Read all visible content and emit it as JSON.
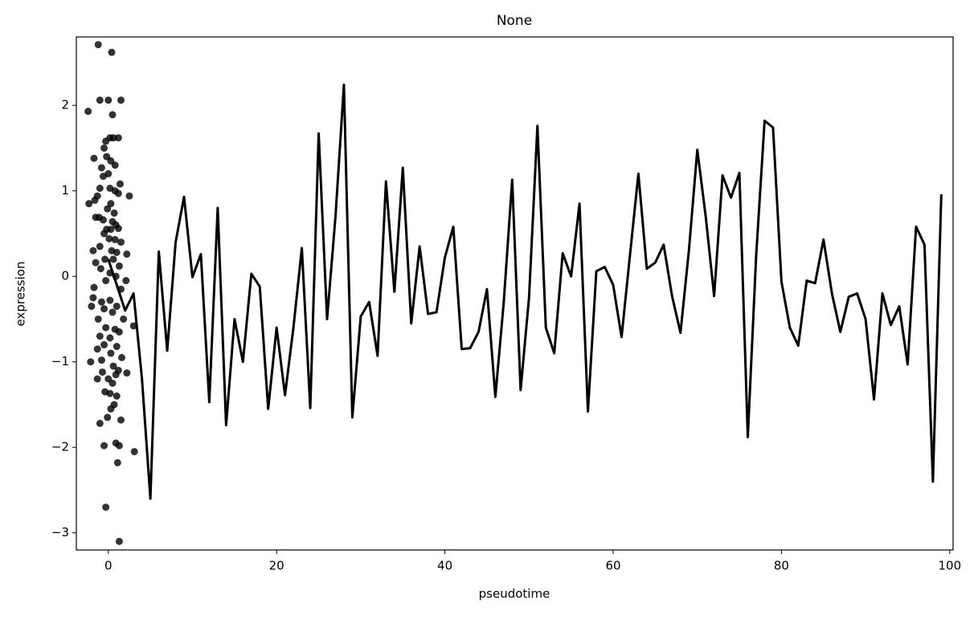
{
  "chart_data": {
    "type": "line",
    "title": "None",
    "xlabel": "pseudotime",
    "ylabel": "expression",
    "xlim": [
      -3.8,
      100.4
    ],
    "ylim": [
      -3.2,
      2.8
    ],
    "xticks": [
      0,
      20,
      40,
      60,
      80,
      100
    ],
    "yticks": [
      {
        "value": -3,
        "label": "−3"
      },
      {
        "value": -2,
        "label": "−2"
      },
      {
        "value": -1,
        "label": "−1"
      },
      0,
      1,
      2
    ],
    "series": [
      {
        "type": "scatter",
        "color": "#000000",
        "x": [
          -2.4,
          -1.2,
          0.4,
          -1,
          0,
          1.5,
          0.5,
          -0.3,
          0.2,
          0.6,
          1.2,
          -0.5,
          -1.7,
          -0.2,
          0.3,
          0.8,
          -0.8,
          -0.6,
          0,
          1.4,
          -1,
          0.2,
          0.8,
          1.2,
          2.5,
          -1.3,
          -1.6,
          -2.3,
          0.3,
          -0.1,
          0.7,
          -1.5,
          -1.1,
          -0.6,
          0.5,
          0.9,
          -0.2,
          0.3,
          1.2,
          -0.5,
          0.1,
          0.8,
          1.5,
          -1,
          -1.8,
          0.4,
          1,
          2.2,
          -1.5,
          -0.4,
          0.6,
          1.3,
          -0.9,
          0.2,
          0.9,
          -1.7,
          2.1,
          -0.3,
          1.5,
          -1.8,
          -0.8,
          0.2,
          1,
          -2,
          -0.5,
          0.5,
          1.8,
          -1.2,
          3,
          -0.3,
          0.8,
          1.3,
          -1,
          0.2,
          -0.5,
          1,
          -1.3,
          0.3,
          1.6,
          -0.8,
          -2.1,
          0.6,
          1.2,
          -0.7,
          2.2,
          0.9,
          -1.3,
          0,
          0.5,
          -0.4,
          0.2,
          1,
          0.7,
          0.3,
          -0.1,
          1.5,
          -1,
          -0.5,
          0.9,
          1.3,
          3.1,
          1.1,
          -0.3,
          1.3
        ],
        "values": [
          1.93,
          2.71,
          2.62,
          2.06,
          2.06,
          2.06,
          1.89,
          1.58,
          1.62,
          1.62,
          1.62,
          1.5,
          1.38,
          1.4,
          1.35,
          1.3,
          1.27,
          1.17,
          1.2,
          1.08,
          1.03,
          1.03,
          1,
          0.97,
          0.94,
          0.94,
          0.89,
          0.85,
          0.85,
          0.79,
          0.74,
          0.69,
          0.69,
          0.66,
          0.64,
          0.6,
          0.55,
          0.55,
          0.56,
          0.5,
          0.44,
          0.43,
          0.4,
          0.35,
          0.3,
          0.3,
          0.28,
          0.26,
          0.16,
          0.2,
          0.2,
          0.12,
          0.09,
          0.04,
          0,
          -0.13,
          -0.05,
          -0.05,
          -0.15,
          -0.25,
          -0.3,
          -0.28,
          -0.35,
          -0.35,
          -0.38,
          -0.42,
          -0.5,
          -0.5,
          -0.58,
          -0.6,
          -0.62,
          -0.65,
          -0.7,
          -0.72,
          -0.8,
          -0.82,
          -0.85,
          -0.9,
          -0.95,
          -0.98,
          -1,
          -1.05,
          -1.1,
          -1.12,
          -1.13,
          -1.15,
          -1.2,
          -1.2,
          -1.25,
          -1.35,
          -1.37,
          -1.4,
          -1.5,
          -1.55,
          -1.65,
          -1.68,
          -1.72,
          -1.98,
          -1.95,
          -1.98,
          -2.05,
          -2.18,
          -2.7,
          -3.1
        ]
      },
      {
        "type": "line",
        "color": "#000000",
        "x": [
          0,
          1,
          2,
          3,
          4,
          5,
          6,
          7,
          8,
          9,
          10,
          11,
          12,
          13,
          14,
          15,
          16,
          17,
          18,
          19,
          20,
          21,
          22,
          23,
          24,
          25,
          26,
          27,
          28,
          29,
          30,
          31,
          32,
          33,
          34,
          35,
          36,
          37,
          38,
          39,
          40,
          41,
          42,
          43,
          44,
          45,
          46,
          47,
          48,
          49,
          50,
          51,
          52,
          53,
          54,
          55,
          56,
          57,
          58,
          59,
          60,
          61,
          62,
          63,
          64,
          65,
          66,
          67,
          68,
          69,
          70,
          71,
          72,
          73,
          74,
          75,
          76,
          77,
          78,
          79,
          80,
          81,
          82,
          83,
          84,
          85,
          86,
          87,
          88,
          89,
          90,
          91,
          92,
          93,
          94,
          95,
          96,
          97,
          98,
          99
        ],
        "values": [
          0.2,
          -0.1,
          -0.4,
          -0.2,
          -1.2,
          -2.6,
          0.29,
          -0.87,
          0.4,
          0.93,
          -0.01,
          0.26,
          -1.47,
          0.8,
          -1.74,
          -0.5,
          -1,
          0.03,
          -0.12,
          -1.55,
          -0.6,
          -1.39,
          -0.6,
          0.33,
          -1.54,
          1.67,
          -0.5,
          0.7,
          2.24,
          -1.65,
          -0.47,
          -0.3,
          -0.93,
          1.11,
          -0.18,
          1.27,
          -0.55,
          0.35,
          -0.44,
          -0.42,
          0.22,
          0.58,
          -0.85,
          -0.84,
          -0.65,
          -0.15,
          -1.41,
          -0.3,
          1.13,
          -1.33,
          -0.25,
          1.76,
          -0.6,
          -0.9,
          0.27,
          0,
          0.85,
          -1.58,
          0.06,
          0.11,
          -0.1,
          -0.71,
          0.25,
          1.2,
          0.09,
          0.16,
          0.37,
          -0.23,
          -0.66,
          0.3,
          1.48,
          0.7,
          -0.23,
          1.18,
          0.92,
          1.21,
          -1.88,
          0.25,
          1.82,
          1.74,
          -0.06,
          -0.6,
          -0.81,
          -0.05,
          -0.08,
          0.43,
          -0.2,
          -0.65,
          -0.24,
          -0.2,
          -0.5,
          -1.44,
          -0.2,
          -0.57,
          -0.35,
          -1.03,
          0.58,
          0.37,
          -2.4,
          0.96
        ]
      }
    ]
  }
}
